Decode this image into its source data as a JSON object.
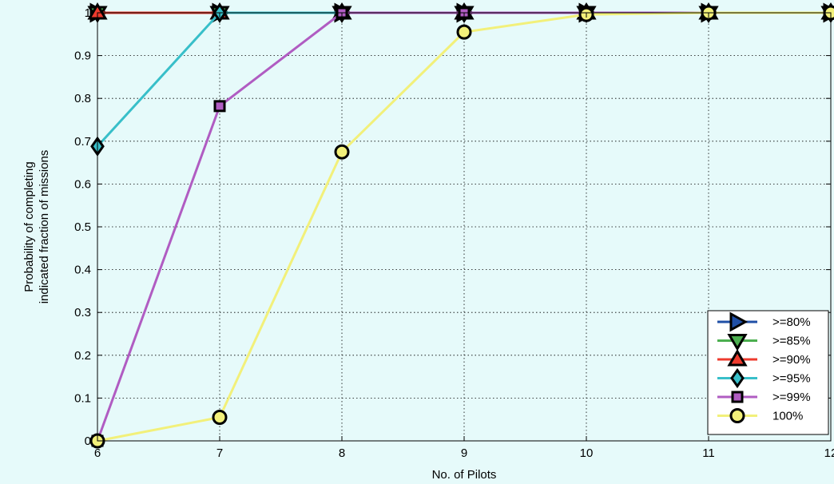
{
  "chart_data": {
    "type": "line",
    "xlabel": "No. of Pilots",
    "ylabel_lines": [
      "Probability of completing",
      "indicated fraction of missions"
    ],
    "x": [
      6,
      7,
      8,
      9,
      10,
      11,
      12
    ],
    "xlim": [
      6,
      12
    ],
    "ylim": [
      0,
      1
    ],
    "x_ticks": [
      "6",
      "7",
      "8",
      "9",
      "10",
      "11",
      "12"
    ],
    "y_ticks": [
      "0",
      "0.1",
      "0.2",
      "0.3",
      "0.4",
      "0.5",
      "0.6",
      "0.7",
      "0.8",
      "0.9",
      "1"
    ],
    "grid": true,
    "legend_position": "bottom-right",
    "series": [
      {
        "name": ">=80%",
        "color": "#1f4fa6",
        "marker": "triangle-right",
        "values": [
          1,
          1,
          1,
          1,
          1,
          1,
          1
        ]
      },
      {
        "name": ">=85%",
        "color": "#4caf50",
        "marker": "triangle-down",
        "values": [
          1,
          1,
          1,
          1,
          1,
          1,
          1
        ]
      },
      {
        "name": ">=90%",
        "color": "#ee3b2e",
        "marker": "triangle-up",
        "values": [
          1,
          1,
          1,
          1,
          1,
          1,
          1
        ]
      },
      {
        "name": ">=95%",
        "color": "#38bfc9",
        "marker": "diamond",
        "values": [
          0.688,
          1,
          1,
          1,
          1,
          1,
          1
        ]
      },
      {
        "name": ">=99%",
        "color": "#b05cc2",
        "marker": "square",
        "values": [
          0,
          0.782,
          1,
          1,
          1,
          1,
          1
        ]
      },
      {
        "name": "100%",
        "color": "#f2f07a",
        "marker": "circle",
        "values": [
          0,
          0.055,
          0.675,
          0.955,
          0.996,
          1,
          1
        ]
      }
    ]
  }
}
